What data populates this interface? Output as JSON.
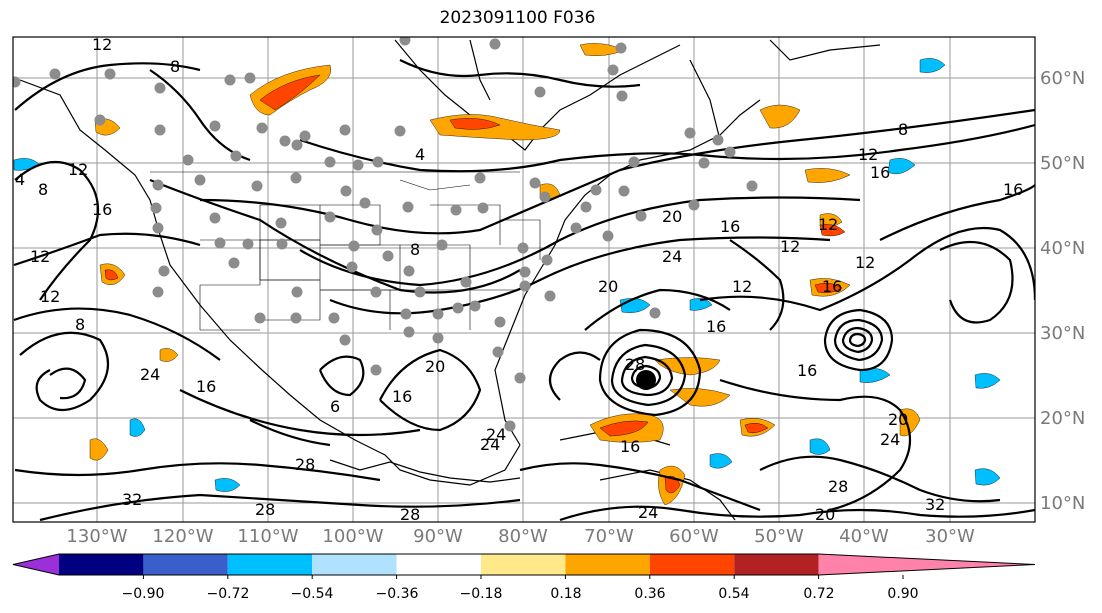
{
  "title": "2023091100 F036",
  "lat_labels": [
    "60°N",
    "50°N",
    "40°N",
    "30°N",
    "20°N",
    "10°N"
  ],
  "lon_labels": [
    "130°W",
    "120°W",
    "110°W",
    "100°W",
    "90°W",
    "80°W",
    "70°W",
    "60°W",
    "50°W",
    "40°W",
    "30°W"
  ],
  "contour_labels": [
    "12",
    "8",
    "4",
    "8",
    "12",
    "16",
    "12",
    "12",
    "8",
    "24",
    "16",
    "8",
    "20",
    "24",
    "12",
    "16",
    "12",
    "16",
    "8",
    "12",
    "16",
    "20",
    "12",
    "16",
    "28",
    "28",
    "24",
    "16",
    "16",
    "20",
    "24",
    "28",
    "32",
    "28",
    "24",
    "20",
    "28",
    "32",
    "6",
    "16",
    "20",
    "16",
    "12",
    "24",
    "4"
  ],
  "colorbar": {
    "ticks": [
      "−0.90",
      "−0.72",
      "−0.54",
      "−0.36",
      "−0.18",
      "0.18",
      "0.36",
      "0.54",
      "0.72",
      "0.90"
    ],
    "colors": [
      "#9b30d9",
      "#000080",
      "#3a5fcd",
      "#00bfff",
      "#b0e2ff",
      "#ffffff",
      "#ffe98a",
      "#ffa500",
      "#ff4500",
      "#b22222",
      "#ff82ab"
    ]
  }
}
